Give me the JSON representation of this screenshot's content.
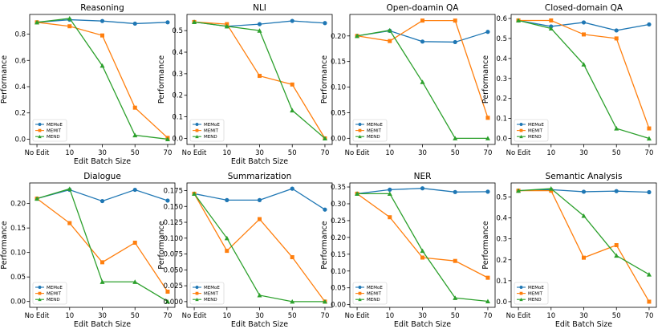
{
  "figure": {
    "colors": {
      "MEMoE": "#1f77b4",
      "MEMIT": "#ff7f0e",
      "MEND": "#2ca02c"
    }
  },
  "chart_data": [
    {
      "type": "line",
      "title": "Reasoning",
      "xlabel": "Edit Batch Size",
      "ylabel": "Performance",
      "categories": [
        "No Edit",
        "10",
        "30",
        "50",
        "70"
      ],
      "ylim": [
        -0.04,
        0.95
      ],
      "yticks": [
        0.0,
        0.2,
        0.4,
        0.6,
        0.8
      ],
      "ytick_labels": [
        "0.0",
        "0.2",
        "0.4",
        "0.6",
        "0.8"
      ],
      "series": [
        {
          "name": "MEMoE",
          "marker": "circle",
          "values": [
            0.89,
            0.91,
            0.9,
            0.88,
            0.89
          ]
        },
        {
          "name": "MEMIT",
          "marker": "square",
          "values": [
            0.89,
            0.86,
            0.79,
            0.24,
            0.01
          ]
        },
        {
          "name": "MEND",
          "marker": "triangle",
          "values": [
            0.89,
            0.92,
            0.56,
            0.03,
            0.0
          ]
        }
      ]
    },
    {
      "type": "line",
      "title": "NLI",
      "xlabel": "Edit Batch Size",
      "ylabel": "Performance",
      "categories": [
        "No Edit",
        "10",
        "30",
        "50",
        "70"
      ],
      "ylim": [
        -0.028,
        0.575
      ],
      "yticks": [
        0.0,
        0.1,
        0.2,
        0.3,
        0.4,
        0.5
      ],
      "ytick_labels": [
        "0.0",
        "0.1",
        "0.2",
        "0.3",
        "0.4",
        "0.5"
      ],
      "series": [
        {
          "name": "MEMoE",
          "marker": "circle",
          "values": [
            0.54,
            0.52,
            0.53,
            0.545,
            0.535
          ]
        },
        {
          "name": "MEMIT",
          "marker": "square",
          "values": [
            0.54,
            0.53,
            0.29,
            0.25,
            0.0
          ]
        },
        {
          "name": "MEND",
          "marker": "triangle",
          "values": [
            0.54,
            0.52,
            0.5,
            0.13,
            0.0
          ]
        }
      ]
    },
    {
      "type": "line",
      "title": "Open-doamin QA",
      "xlabel": "",
      "ylabel": "Performance",
      "categories": [
        "No Edit",
        "10",
        "30",
        "50",
        "70"
      ],
      "ylim": [
        -0.012,
        0.242
      ],
      "yticks": [
        0.0,
        0.05,
        0.1,
        0.15,
        0.2
      ],
      "ytick_labels": [
        "0.00",
        "0.05",
        "0.10",
        "0.15",
        "0.20"
      ],
      "series": [
        {
          "name": "MEMoE",
          "marker": "circle",
          "values": [
            0.2,
            0.21,
            0.189,
            0.188,
            0.208
          ]
        },
        {
          "name": "MEMIT",
          "marker": "square",
          "values": [
            0.2,
            0.19,
            0.23,
            0.23,
            0.04
          ]
        },
        {
          "name": "MEND",
          "marker": "triangle",
          "values": [
            0.2,
            0.211,
            0.11,
            0.0,
            0.0
          ]
        }
      ]
    },
    {
      "type": "line",
      "title": "Closed-domain QA",
      "xlabel": "",
      "ylabel": "Performance",
      "categories": [
        "No Edit",
        "10",
        "30",
        "50",
        "70"
      ],
      "ylim": [
        -0.03,
        0.62
      ],
      "yticks": [
        0.0,
        0.1,
        0.2,
        0.3,
        0.4,
        0.5,
        0.6
      ],
      "ytick_labels": [
        "0.0",
        "0.1",
        "0.2",
        "0.3",
        "0.4",
        "0.5",
        "0.6"
      ],
      "series": [
        {
          "name": "MEMoE",
          "marker": "circle",
          "values": [
            0.59,
            0.56,
            0.58,
            0.54,
            0.57
          ]
        },
        {
          "name": "MEMIT",
          "marker": "square",
          "values": [
            0.59,
            0.59,
            0.52,
            0.5,
            0.05
          ]
        },
        {
          "name": "MEND",
          "marker": "triangle",
          "values": [
            0.59,
            0.55,
            0.37,
            0.05,
            0.0
          ]
        }
      ]
    },
    {
      "type": "line",
      "title": "Dialogue",
      "xlabel": "Edit Batch Size",
      "ylabel": "Performance",
      "categories": [
        "No Edit",
        "10",
        "30",
        "50",
        "70"
      ],
      "ylim": [
        -0.012,
        0.242
      ],
      "yticks": [
        0.0,
        0.05,
        0.1,
        0.15,
        0.2
      ],
      "ytick_labels": [
        "0.00",
        "0.05",
        "0.10",
        "0.15",
        "0.20"
      ],
      "series": [
        {
          "name": "MEMoE",
          "marker": "circle",
          "values": [
            0.21,
            0.228,
            0.205,
            0.228,
            0.206
          ]
        },
        {
          "name": "MEMIT",
          "marker": "square",
          "values": [
            0.21,
            0.16,
            0.08,
            0.12,
            0.02
          ]
        },
        {
          "name": "MEND",
          "marker": "triangle",
          "values": [
            0.21,
            0.23,
            0.04,
            0.04,
            0.0
          ]
        }
      ]
    },
    {
      "type": "line",
      "title": "Summarization",
      "xlabel": "Edit Batch Size",
      "ylabel": "Performance",
      "categories": [
        "No Edit",
        "10",
        "30",
        "50",
        "70"
      ],
      "ylim": [
        -0.009,
        0.187
      ],
      "yticks": [
        0.0,
        0.025,
        0.05,
        0.075,
        0.1,
        0.125,
        0.15,
        0.175
      ],
      "ytick_labels": [
        "0.000",
        "0.025",
        "0.050",
        "0.075",
        "0.100",
        "0.125",
        "0.150",
        "0.175"
      ],
      "series": [
        {
          "name": "MEMoE",
          "marker": "circle",
          "values": [
            0.17,
            0.16,
            0.16,
            0.178,
            0.145
          ]
        },
        {
          "name": "MEMIT",
          "marker": "square",
          "values": [
            0.17,
            0.08,
            0.13,
            0.07,
            0.0
          ]
        },
        {
          "name": "MEND",
          "marker": "triangle",
          "values": [
            0.17,
            0.1,
            0.01,
            0.0,
            0.0
          ]
        }
      ]
    },
    {
      "type": "line",
      "title": "NER",
      "xlabel": "Edit Batch Size",
      "ylabel": "Performance",
      "categories": [
        "No Edit",
        "10",
        "30",
        "50",
        "70"
      ],
      "ylim": [
        -0.008,
        0.362
      ],
      "yticks": [
        0.0,
        0.05,
        0.1,
        0.15,
        0.2,
        0.25,
        0.3,
        0.35
      ],
      "ytick_labels": [
        "0.00",
        "0.05",
        "0.10",
        "0.15",
        "0.20",
        "0.25",
        "0.30",
        "0.35"
      ],
      "series": [
        {
          "name": "MEMoE",
          "marker": "circle",
          "values": [
            0.33,
            0.342,
            0.346,
            0.335,
            0.336
          ]
        },
        {
          "name": "MEMIT",
          "marker": "square",
          "values": [
            0.33,
            0.26,
            0.14,
            0.13,
            0.08
          ]
        },
        {
          "name": "MEND",
          "marker": "triangle",
          "values": [
            0.33,
            0.33,
            0.16,
            0.02,
            0.01
          ]
        }
      ]
    },
    {
      "type": "line",
      "title": "Semantic Analysis",
      "xlabel": "Edit Batch Size",
      "ylabel": "Performance",
      "categories": [
        "No Edit",
        "10",
        "30",
        "50",
        "70"
      ],
      "ylim": [
        -0.027,
        0.567
      ],
      "yticks": [
        0.0,
        0.1,
        0.2,
        0.3,
        0.4,
        0.5
      ],
      "ytick_labels": [
        "0.0",
        "0.1",
        "0.2",
        "0.3",
        "0.4",
        "0.5"
      ],
      "series": [
        {
          "name": "MEMoE",
          "marker": "circle",
          "values": [
            0.53,
            0.535,
            0.525,
            0.528,
            0.523
          ]
        },
        {
          "name": "MEMIT",
          "marker": "square",
          "values": [
            0.53,
            0.53,
            0.21,
            0.27,
            0.0
          ]
        },
        {
          "name": "MEND",
          "marker": "triangle",
          "values": [
            0.53,
            0.54,
            0.41,
            0.22,
            0.13
          ]
        }
      ]
    }
  ]
}
